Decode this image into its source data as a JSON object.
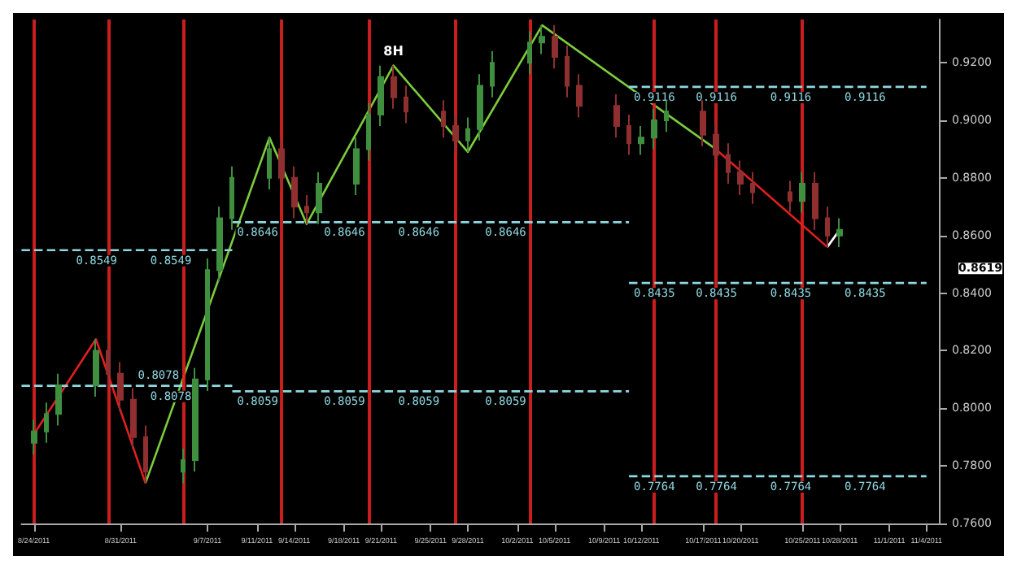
{
  "chart_data": {
    "type": "candlestick",
    "x": [
      "2011-08-24",
      "2011-08-25",
      "2011-08-26",
      "2011-08-29",
      "2011-08-30",
      "2011-08-31",
      "2011-09-01",
      "2011-09-02",
      "2011-09-05",
      "2011-09-06",
      "2011-09-07",
      "2011-09-08",
      "2011-09-09",
      "2011-09-12",
      "2011-09-13",
      "2011-09-14",
      "2011-09-15",
      "2011-09-16",
      "2011-09-19",
      "2011-09-20",
      "2011-09-21",
      "2011-09-22",
      "2011-09-23",
      "2011-09-26",
      "2011-09-27",
      "2011-09-28",
      "2011-09-29",
      "2011-09-30",
      "2011-10-03",
      "2011-10-04",
      "2011-10-05",
      "2011-10-06",
      "2011-10-07",
      "2011-10-10",
      "2011-10-11",
      "2011-10-12",
      "2011-10-13",
      "2011-10-14",
      "2011-10-17",
      "2011-10-18",
      "2011-10-19",
      "2011-10-20",
      "2011-10-21",
      "2011-10-24",
      "2011-10-25",
      "2011-10-26",
      "2011-10-27",
      "2011-10-28"
    ],
    "ohlc": [
      [
        0.788,
        0.796,
        0.784,
        0.792
      ],
      [
        0.792,
        0.802,
        0.788,
        0.798
      ],
      [
        0.798,
        0.812,
        0.794,
        0.808
      ],
      [
        0.808,
        0.824,
        0.804,
        0.82
      ],
      [
        0.82,
        0.824,
        0.808,
        0.812
      ],
      [
        0.812,
        0.816,
        0.799,
        0.803
      ],
      [
        0.803,
        0.807,
        0.786,
        0.79
      ],
      [
        0.79,
        0.794,
        0.774,
        0.778
      ],
      [
        0.778,
        0.786,
        0.774,
        0.782
      ],
      [
        0.782,
        0.814,
        0.778,
        0.81
      ],
      [
        0.81,
        0.852,
        0.806,
        0.848
      ],
      [
        0.848,
        0.87,
        0.844,
        0.866
      ],
      [
        0.866,
        0.884,
        0.862,
        0.88
      ],
      [
        0.88,
        0.894,
        0.876,
        0.89
      ],
      [
        0.89,
        0.894,
        0.876,
        0.88
      ],
      [
        0.88,
        0.884,
        0.866,
        0.87
      ],
      [
        0.87,
        0.874,
        0.864,
        0.868
      ],
      [
        0.868,
        0.882,
        0.864,
        0.878
      ],
      [
        0.878,
        0.894,
        0.874,
        0.89
      ],
      [
        0.89,
        0.906,
        0.886,
        0.902
      ],
      [
        0.902,
        0.919,
        0.898,
        0.915
      ],
      [
        0.915,
        0.919,
        0.904,
        0.908
      ],
      [
        0.908,
        0.912,
        0.899,
        0.903
      ],
      [
        0.903,
        0.907,
        0.894,
        0.898
      ],
      [
        0.898,
        0.902,
        0.889,
        0.893
      ],
      [
        0.893,
        0.901,
        0.889,
        0.897
      ],
      [
        0.897,
        0.916,
        0.893,
        0.912
      ],
      [
        0.912,
        0.924,
        0.908,
        0.92
      ],
      [
        0.92,
        0.931,
        0.916,
        0.927
      ],
      [
        0.927,
        0.933,
        0.923,
        0.929
      ],
      [
        0.929,
        0.933,
        0.918,
        0.922
      ],
      [
        0.922,
        0.926,
        0.908,
        0.912
      ],
      [
        0.912,
        0.916,
        0.901,
        0.905
      ],
      [
        0.905,
        0.909,
        0.894,
        0.898
      ],
      [
        0.898,
        0.902,
        0.888,
        0.892
      ],
      [
        0.892,
        0.898,
        0.888,
        0.894
      ],
      [
        0.894,
        0.904,
        0.89,
        0.9
      ],
      [
        0.9,
        0.907,
        0.896,
        0.903
      ],
      [
        0.903,
        0.907,
        0.891,
        0.895
      ],
      [
        0.895,
        0.899,
        0.884,
        0.888
      ],
      [
        0.888,
        0.892,
        0.878,
        0.882
      ],
      [
        0.882,
        0.886,
        0.874,
        0.878
      ],
      [
        0.878,
        0.882,
        0.871,
        0.875
      ],
      [
        0.875,
        0.879,
        0.868,
        0.872
      ],
      [
        0.872,
        0.882,
        0.868,
        0.878
      ],
      [
        0.878,
        0.882,
        0.862,
        0.866
      ],
      [
        0.866,
        0.87,
        0.856,
        0.86
      ],
      [
        0.86,
        0.866,
        0.856,
        0.862
      ]
    ],
    "colors": [
      "#3f8f3f",
      "#3f8f3f",
      "#3f8f3f",
      "#3f8f3f",
      "#8f2f2f",
      "#8f2f2f",
      "#8f2f2f",
      "#8f2f2f",
      "#3f8f3f",
      "#3f8f3f",
      "#3f8f3f",
      "#3f8f3f",
      "#3f8f3f",
      "#3f8f3f",
      "#8f2f2f",
      "#8f2f2f",
      "#8f2f2f",
      "#3f8f3f",
      "#3f8f3f",
      "#3f8f3f",
      "#3f8f3f",
      "#8f2f2f",
      "#8f2f2f",
      "#8f2f2f",
      "#8f2f2f",
      "#3f8f3f",
      "#3f8f3f",
      "#3f8f3f",
      "#3f8f3f",
      "#3f8f3f",
      "#8f2f2f",
      "#8f2f2f",
      "#8f2f2f",
      "#8f2f2f",
      "#8f2f2f",
      "#3f8f3f",
      "#3f8f3f",
      "#3f8f3f",
      "#8f2f2f",
      "#8f2f2f",
      "#8f2f2f",
      "#8f2f2f",
      "#8f2f2f",
      "#8f2f2f",
      "#3f8f3f",
      "#8f2f2f",
      "#8f2f2f",
      "#3f8f3f"
    ],
    "series": [
      {
        "type": "line",
        "color": "#e02020",
        "x": [
          "2011-08-24",
          "2011-08-29",
          "2011-09-02"
        ],
        "values": [
          0.791,
          0.824,
          0.774
        ]
      },
      {
        "type": "line",
        "color": "#7ccc3c",
        "x": [
          "2011-09-02",
          "2011-09-12",
          "2011-09-15",
          "2011-09-22",
          "2011-09-28",
          "2011-10-04",
          "2011-10-18"
        ],
        "values": [
          0.774,
          0.894,
          0.864,
          0.919,
          0.889,
          0.933,
          0.89
        ]
      },
      {
        "type": "line",
        "color": "#e02020",
        "x": [
          "2011-10-18",
          "2011-10-27"
        ],
        "values": [
          0.89,
          0.856
        ]
      },
      {
        "type": "line",
        "color": "#ffffff",
        "x": [
          "2011-10-27",
          "2011-10-28"
        ],
        "values": [
          0.856,
          0.862
        ]
      },
      {
        "type": "line",
        "color": "#8fd8e0",
        "line_style": "dashed",
        "x": [
          "2011-08-23",
          "2011-08-27",
          "2011-09-02",
          "2011-09-09"
        ],
        "values": [
          0.8549,
          0.8549,
          0.8549,
          0.8549
        ],
        "value_labels": [
          null,
          "0.8549",
          "0.8549",
          null
        ]
      },
      {
        "type": "line",
        "color": "#8fd8e0",
        "line_style": "dashed",
        "x": [
          "2011-08-23",
          "2011-09-01",
          "2011-09-02",
          "2011-09-09"
        ],
        "values": [
          0.8078,
          0.8078,
          0.8078,
          0.8078
        ],
        "value_labels": [
          null,
          "0.8078",
          "0.8078",
          null
        ]
      },
      {
        "type": "line",
        "color": "#8fd8e0",
        "line_style": "dashed",
        "x": [
          "2011-09-09",
          "2011-09-16",
          "2011-09-22",
          "2011-09-29",
          "2011-10-11"
        ],
        "values": [
          0.8646,
          0.8646,
          0.8646,
          0.8646,
          0.8646
        ],
        "value_labels": [
          "0.8646",
          "0.8646",
          "0.8646",
          "0.8646",
          null
        ]
      },
      {
        "type": "line",
        "color": "#8fd8e0",
        "line_style": "dashed",
        "x": [
          "2011-09-09",
          "2011-09-16",
          "2011-09-22",
          "2011-09-29",
          "2011-10-11"
        ],
        "values": [
          0.8059,
          0.8059,
          0.8059,
          0.8059,
          0.8059
        ],
        "value_labels": [
          "0.8059",
          "0.8059",
          "0.8059",
          "0.8059",
          null
        ]
      },
      {
        "type": "line",
        "color": "#8fd8e0",
        "line_style": "dashed",
        "x": [
          "2011-10-11",
          "2011-10-16",
          "2011-10-22",
          "2011-10-28",
          "2011-11-04"
        ],
        "values": [
          0.9116,
          0.9116,
          0.9116,
          0.9116,
          0.9116
        ],
        "value_labels": [
          "0.9116",
          "0.9116",
          "0.9116",
          "0.9116",
          null
        ]
      },
      {
        "type": "line",
        "color": "#8fd8e0",
        "line_style": "dashed",
        "x": [
          "2011-10-11",
          "2011-10-16",
          "2011-10-22",
          "2011-10-28",
          "2011-11-04"
        ],
        "values": [
          0.8435,
          0.8435,
          0.8435,
          0.8435,
          0.8435
        ],
        "value_labels": [
          "0.8435",
          "0.8435",
          "0.8435",
          "0.8435",
          null
        ]
      },
      {
        "type": "line",
        "color": "#8fd8e0",
        "line_style": "dashed",
        "x": [
          "2011-10-11",
          "2011-10-16",
          "2011-10-22",
          "2011-10-28",
          "2011-11-04"
        ],
        "values": [
          0.7764,
          0.7764,
          0.7764,
          0.7764,
          0.7764
        ],
        "value_labels": [
          "0.7764",
          "0.7764",
          "0.7764",
          "0.7764",
          null
        ]
      }
    ],
    "ref_lines": [
      {
        "axis": "x",
        "value": "2011-08-24",
        "color": "#e02020"
      },
      {
        "axis": "x",
        "value": "2011-08-30",
        "color": "#e02020"
      },
      {
        "axis": "x",
        "value": "2011-09-05",
        "color": "#e02020"
      },
      {
        "axis": "x",
        "value": "2011-09-13",
        "color": "#e02020"
      },
      {
        "axis": "x",
        "value": "2011-09-20",
        "color": "#e02020"
      },
      {
        "axis": "x",
        "value": "2011-09-27",
        "color": "#e02020"
      },
      {
        "axis": "x",
        "value": "2011-10-03",
        "color": "#e02020"
      },
      {
        "axis": "x",
        "value": "2011-10-13",
        "color": "#e02020"
      },
      {
        "axis": "x",
        "value": "2011-10-18",
        "color": "#e02020"
      },
      {
        "axis": "x",
        "value": "2011-10-25",
        "color": "#e02020"
      }
    ],
    "annotations": [
      {
        "text": "8H",
        "x": "2011-09-22",
        "y": 0.919
      },
      "0.8619"
    ],
    "xlim": [
      "2011-08-23",
      "2011-11-05"
    ],
    "xticks": [
      {
        "value": "2011-08-24",
        "label": "8/24/2011"
      },
      {
        "value": "2011-08-31",
        "label": "8/31/2011"
      },
      {
        "value": "2011-09-07",
        "label": "9/7/2011"
      },
      {
        "value": "2011-09-11",
        "label": "9/11/2011"
      },
      {
        "value": "2011-09-14",
        "label": "9/14/2011"
      },
      {
        "value": "2011-09-18",
        "label": "9/18/2011"
      },
      {
        "value": "2011-09-21",
        "label": "9/21/2011"
      },
      {
        "value": "2011-09-25",
        "label": "9/25/2011"
      },
      {
        "value": "2011-09-28",
        "label": "9/28/2011"
      },
      {
        "value": "2011-10-02",
        "label": "10/2/2011"
      },
      {
        "value": "2011-10-05",
        "label": "10/5/2011"
      },
      {
        "value": "2011-10-09",
        "label": "10/9/2011"
      },
      {
        "value": "2011-10-12",
        "label": "10/12/2011"
      },
      {
        "value": "2011-10-17",
        "label": "10/17/2011"
      },
      {
        "value": "2011-10-20",
        "label": "10/20/2011"
      },
      {
        "value": "2011-10-25",
        "label": "10/25/2011"
      },
      {
        "value": "2011-10-28",
        "label": "10/28/2011"
      },
      {
        "value": "2011-11-01",
        "label": "11/1/2011"
      },
      {
        "value": "2011-11-04",
        "label": "11/4/2011"
      }
    ],
    "ylim": [
      0.76,
      0.935
    ],
    "yticks": [
      {
        "value": 0.76,
        "label": "0.7600"
      },
      {
        "value": 0.78,
        "label": "0.7800"
      },
      {
        "value": 0.8,
        "label": "0.8000"
      },
      {
        "value": 0.82,
        "label": "0.8200"
      },
      {
        "value": 0.84,
        "label": "0.8400"
      },
      {
        "value": 0.86,
        "label": "0.8600"
      },
      {
        "value": 0.88,
        "label": "0.8800"
      },
      {
        "value": 0.9,
        "label": "0.9000"
      },
      {
        "value": 0.92,
        "label": "0.9200"
      }
    ]
  }
}
